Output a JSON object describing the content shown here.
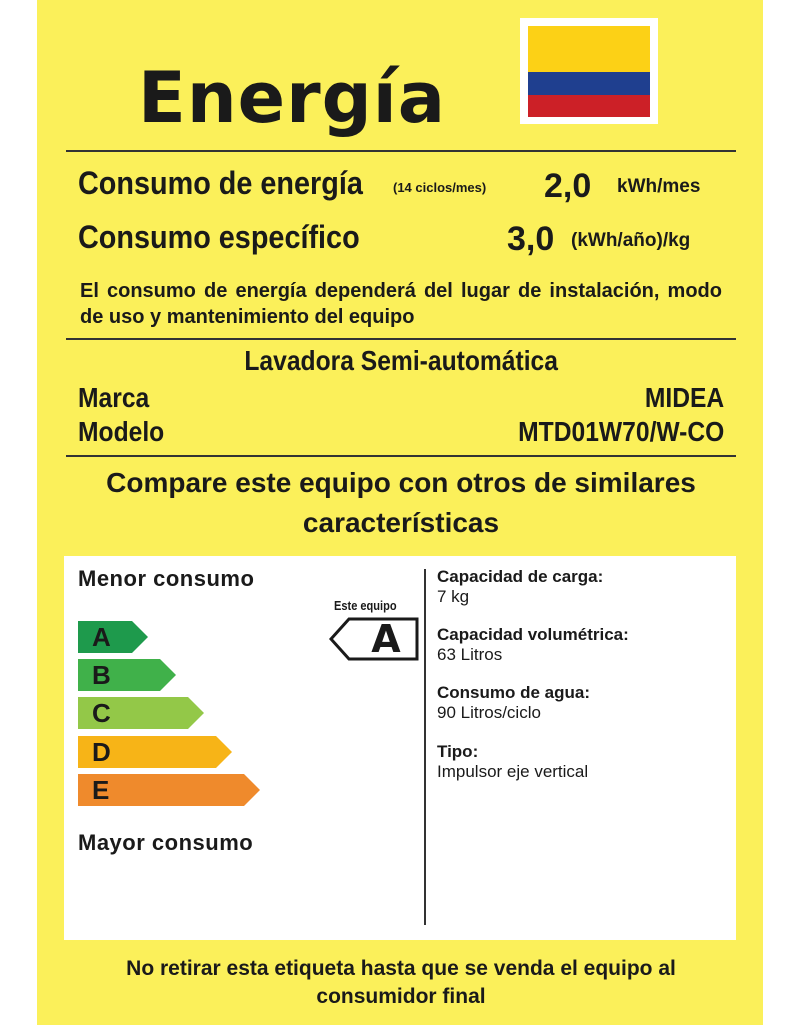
{
  "title": "Energía",
  "flag": {
    "name": "colombia-flag",
    "colors": [
      "#fcd116",
      "#1f3f8f",
      "#cc2027"
    ]
  },
  "consumo_energia": {
    "label": "Consumo de energía",
    "note": "(14 ciclos/mes)",
    "value": "2,0",
    "unit": "kWh/mes"
  },
  "consumo_especifico": {
    "label": "Consumo específico",
    "value": "3,0",
    "unit": "(kWh/año)/kg"
  },
  "disclaimer": "El consumo de energía dependerá del lugar de instalación, modo de uso y mantenimiento del equipo",
  "product": {
    "type": "Lavadora Semi-automática",
    "brand_label": "Marca",
    "brand": "MIDEA",
    "model_label": "Modelo",
    "model": "MTD01W70/W-CO"
  },
  "compare_text": "Compare este equipo con otros de similares características",
  "scale": {
    "top_label": "Menor consumo",
    "bottom_label": "Mayor consumo",
    "classes": [
      {
        "letter": "A",
        "color": "#1e9a4c"
      },
      {
        "letter": "B",
        "color": "#40b14a"
      },
      {
        "letter": "C",
        "color": "#93c848"
      },
      {
        "letter": "D",
        "color": "#f7b417"
      },
      {
        "letter": "E",
        "color": "#ef8a2c"
      }
    ]
  },
  "este_equipo": {
    "label": "Este equipo",
    "class": "A"
  },
  "specs": [
    {
      "label": "Capacidad de carga:",
      "value": "7 kg"
    },
    {
      "label": "Capacidad volumétrica:",
      "value": "63 Litros"
    },
    {
      "label": "Consumo de agua:",
      "value": "90 Litros/ciclo"
    },
    {
      "label": "Tipo:",
      "value": "Impulsor eje vertical"
    }
  ],
  "footer": "No retirar esta etiqueta hasta que se venda el equipo al consumidor final"
}
